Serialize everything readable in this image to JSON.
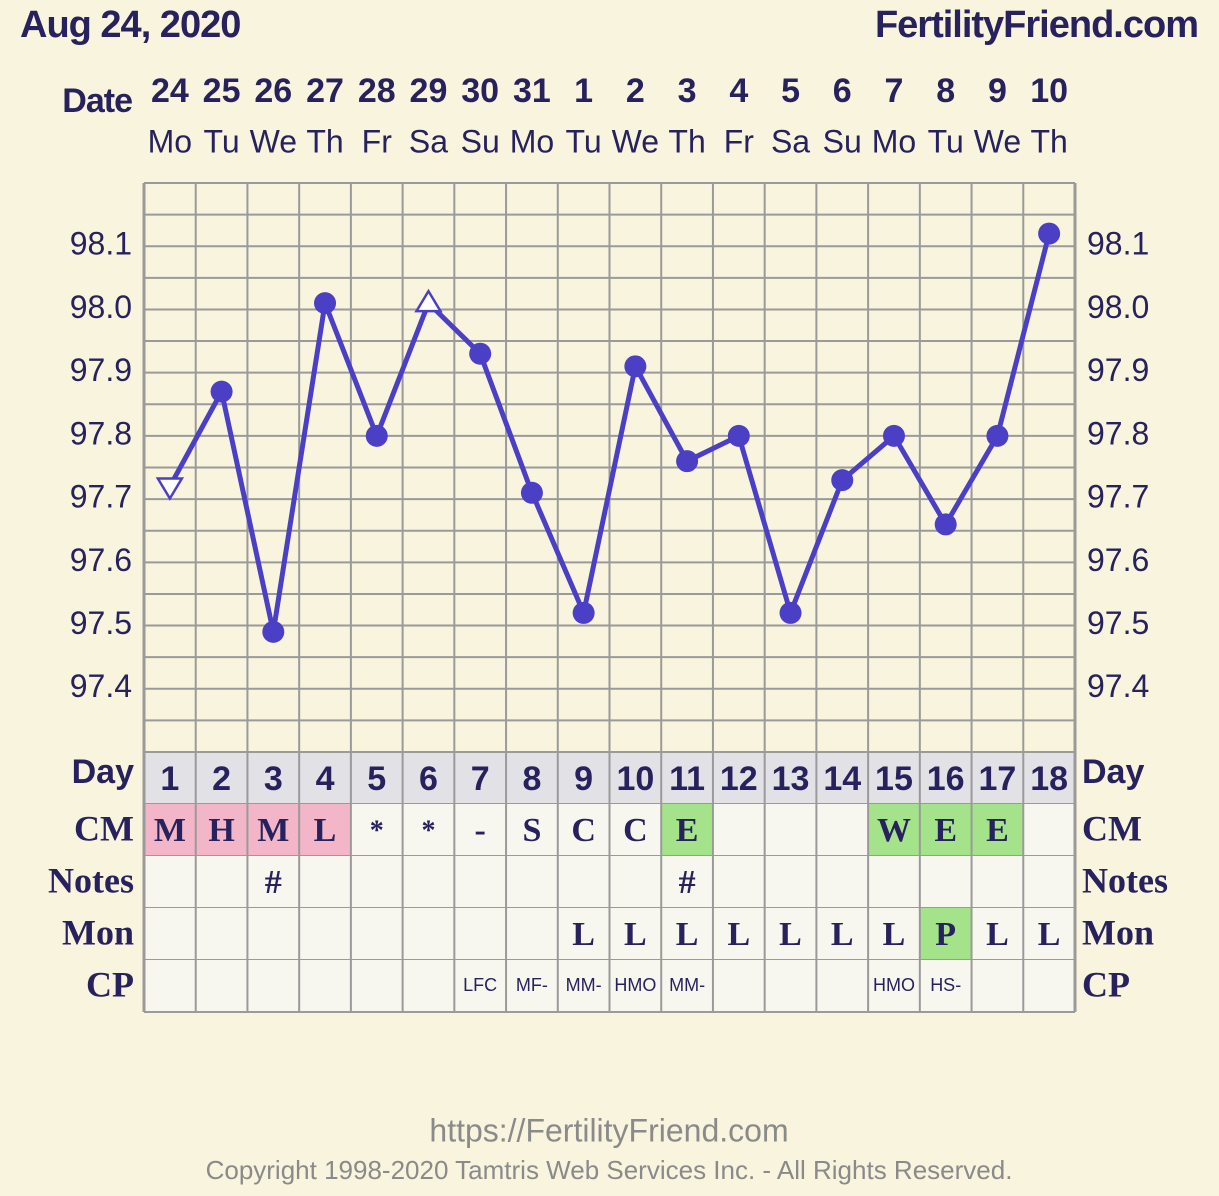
{
  "header": {
    "date": "Aug 24, 2020",
    "site": "FertilityFriend.com"
  },
  "chart_data": {
    "type": "line",
    "x_label": "Date",
    "categories": [
      "24",
      "25",
      "26",
      "27",
      "28",
      "29",
      "30",
      "31",
      "1",
      "2",
      "3",
      "4",
      "5",
      "6",
      "7",
      "8",
      "9",
      "10"
    ],
    "weekdays": [
      "Mo",
      "Tu",
      "We",
      "Th",
      "Fr",
      "Sa",
      "Su",
      "Mo",
      "Tu",
      "We",
      "Th",
      "Fr",
      "Sa",
      "Su",
      "Mo",
      "Tu",
      "We",
      "Th"
    ],
    "values": [
      97.72,
      97.87,
      97.49,
      98.01,
      97.8,
      98.01,
      97.93,
      97.71,
      97.52,
      97.91,
      97.76,
      97.8,
      97.52,
      97.73,
      97.8,
      97.66,
      97.8,
      98.12
    ],
    "markers": [
      "triangle-down",
      "circle",
      "circle",
      "circle",
      "circle",
      "triangle-up",
      "circle",
      "circle",
      "circle",
      "circle",
      "circle",
      "circle",
      "circle",
      "circle",
      "circle",
      "circle",
      "circle",
      "circle"
    ],
    "color": "#4b3fc6",
    "ylim": [
      97.3,
      98.2
    ],
    "yticks": [
      97.4,
      97.5,
      97.6,
      97.7,
      97.8,
      97.9,
      {
        "value": 98,
        "label": "98.0"
      },
      98.1
    ],
    "ygrid": [
      97.3,
      97.35,
      97.4,
      97.45,
      97.5,
      97.55,
      97.6,
      97.65,
      97.7,
      97.75,
      97.8,
      97.85,
      97.9,
      97.95,
      98,
      98.05,
      98.1,
      98.15,
      98.2
    ],
    "grid": true
  },
  "table": {
    "rows": [
      {
        "label": "Day",
        "style": "day",
        "cells": [
          "1",
          "2",
          "3",
          "4",
          "5",
          "6",
          "7",
          "8",
          "9",
          "10",
          "11",
          "12",
          "13",
          "14",
          "15",
          "16",
          "17",
          "18"
        ],
        "colors": null
      },
      {
        "label": "CM",
        "style": "serif",
        "cells": [
          "M",
          "H",
          "M",
          "L",
          "*",
          "*",
          "-",
          "S",
          "C",
          "C",
          "E",
          null,
          null,
          null,
          "W",
          "E",
          "E",
          null
        ],
        "colors": [
          "#f2b6c8",
          "#f2b6c8",
          "#f2b6c8",
          "#f2b6c8",
          null,
          null,
          null,
          null,
          null,
          null,
          "#a4e38a",
          null,
          null,
          null,
          "#a4e38a",
          "#a4e38a",
          "#a4e38a",
          null
        ]
      },
      {
        "label": "Notes",
        "style": "serif",
        "cells": [
          null,
          null,
          "#",
          null,
          null,
          null,
          null,
          null,
          null,
          null,
          "#",
          null,
          null,
          null,
          null,
          null,
          null,
          null
        ],
        "colors": null
      },
      {
        "label": "Mon",
        "style": "serif",
        "cells": [
          null,
          null,
          null,
          null,
          null,
          null,
          null,
          null,
          "L",
          "L",
          "L",
          "L",
          "L",
          "L",
          "L",
          "P",
          "L",
          "L"
        ],
        "colors": [
          null,
          null,
          null,
          null,
          null,
          null,
          null,
          null,
          null,
          null,
          null,
          null,
          null,
          null,
          null,
          "#a4e38a",
          null,
          null
        ]
      },
      {
        "label": "CP",
        "style": "small",
        "cells": [
          null,
          null,
          null,
          null,
          null,
          null,
          "LFC",
          "MF-",
          "MM-",
          "HMO",
          "MM-",
          null,
          null,
          null,
          "HMO",
          "HS-",
          null,
          null
        ],
        "colors": null
      }
    ]
  },
  "footer": {
    "url": "https://FertilityFriend.com",
    "copyright": "Copyright 1998-2020 Tamtris Web Services Inc. - All Rights Reserved."
  }
}
